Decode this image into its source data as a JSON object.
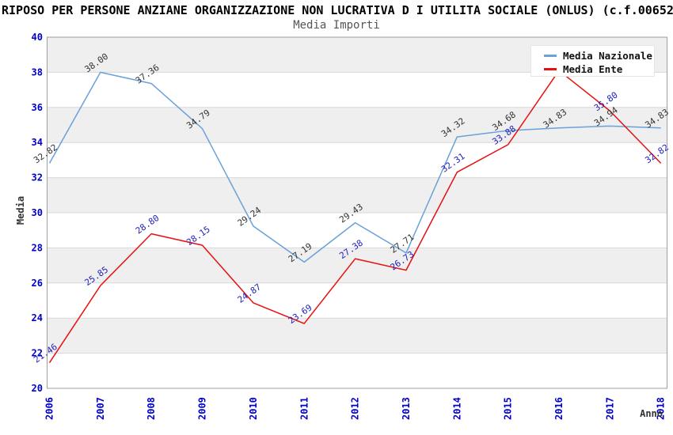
{
  "header": {
    "title": "RIPOSO PER PERSONE ANZIANE ORGANIZZAZIONE NON LUCRATIVA D I UTILITA SOCIALE (ONLUS) (c.f.00652",
    "subtitle": "Media Importi"
  },
  "legend": {
    "position": "top-right",
    "items": [
      {
        "label": "Media Nazionale",
        "color": "#69a1d9"
      },
      {
        "label": "Media Ente",
        "color": "#e80f0f"
      }
    ]
  },
  "chart_data": {
    "type": "line",
    "title": "RIPOSO PER PERSONE ANZIANE ORGANIZZAZIONE NON LUCRATIVA D I UTILITA SOCIALE (ONLUS) (c.f.00652",
    "subtitle": "Media Importi",
    "xlabel": "Anno",
    "ylabel": "Media",
    "x": [
      2006,
      2007,
      2008,
      2009,
      2010,
      2011,
      2012,
      2013,
      2014,
      2015,
      2016,
      2017,
      2018
    ],
    "ylim": [
      20,
      40
    ],
    "y_ticks": [
      40,
      38,
      36,
      34,
      32,
      30,
      28,
      26,
      24,
      22,
      20
    ],
    "grid": true,
    "legend_position": "top-right",
    "series": [
      {
        "name": "Media Nazionale",
        "color": "#69a1d9",
        "label_color": "#333333",
        "values": [
          32.82,
          38.0,
          37.36,
          34.79,
          29.24,
          27.19,
          29.43,
          27.71,
          34.32,
          34.68,
          34.83,
          34.94,
          34.83
        ],
        "point_labels": [
          "32.82",
          "38.00",
          "37.36",
          "34.79",
          "29.24",
          "27.19",
          "29.43",
          "27.71",
          "34.32",
          "34.68",
          "34.83",
          "34.94",
          "34.83"
        ]
      },
      {
        "name": "Media Ente",
        "color": "#e80f0f",
        "label_color": "#2222bb",
        "values": [
          21.46,
          25.85,
          28.8,
          28.15,
          24.87,
          23.69,
          27.38,
          26.73,
          32.31,
          33.88,
          38.1,
          35.8,
          32.82
        ],
        "point_labels": [
          "21.46",
          "25.85",
          "28.80",
          "28.15",
          "24.87",
          "23.69",
          "27.38",
          "26.73",
          "32.31",
          "33.88",
          null,
          "35.80",
          "32.82"
        ]
      }
    ],
    "style": {
      "band_color": "#efefef",
      "grid_color": "#d9d9d9",
      "frame_color": "#9e9e9e",
      "tick_color": "#0000cc",
      "axis_title_color": "#333333"
    }
  }
}
